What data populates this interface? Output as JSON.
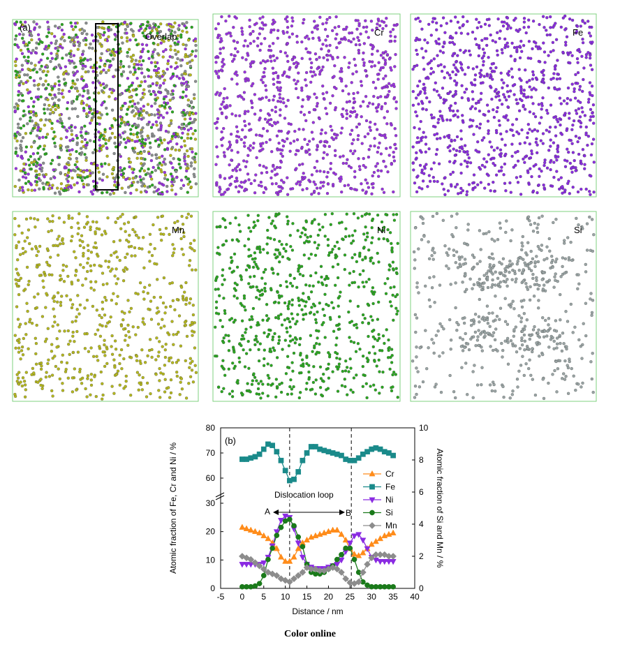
{
  "caption": "Color online",
  "panels": [
    {
      "label": "(a)",
      "element": "Overlap",
      "color": "#9a33e0"
    },
    {
      "label": "",
      "element": "Cr",
      "color": "#9a33e0"
    },
    {
      "label": "",
      "element": "Fe",
      "color": "#8a2be2"
    },
    {
      "label": "",
      "element": "Mn",
      "color": "#b5b81e"
    },
    {
      "label": "",
      "element": "Ni",
      "color": "#2aa820"
    },
    {
      "label": "",
      "element": "Si",
      "color": "#9aa5a5"
    }
  ],
  "overlap_colors": [
    "#9a33e0",
    "#2aa820",
    "#b5b81e",
    "#8a8f8f"
  ],
  "chart_data": {
    "type": "line",
    "panel_label": "(b)",
    "xlabel": "Distance / nm",
    "ylabel_left": "Atomic fraction of Fe, Cr and Ni / %",
    "ylabel_right": "Atomic fraction of Si and Mn / %",
    "xlim": [
      -5,
      40
    ],
    "xticks": [
      -5,
      0,
      5,
      10,
      15,
      20,
      25,
      30,
      35,
      40
    ],
    "ylim_left_lower": [
      0,
      30
    ],
    "ylim_left_upper": [
      55,
      80
    ],
    "yticks_left": [
      0,
      10,
      20,
      30,
      60,
      70,
      80
    ],
    "ylim_right": [
      0,
      10
    ],
    "yticks_right": [
      0,
      2,
      4,
      6,
      8,
      10
    ],
    "axis_break": true,
    "legend_position": "right",
    "dashed_lines_x": [
      11,
      25.3
    ],
    "annotations": {
      "loop_label": "Dislocation loop",
      "point_a": "A",
      "point_b": "B"
    },
    "series": [
      {
        "name": "Cr",
        "axis": "left",
        "color": "#ff8c1a",
        "marker": "triangle-up",
        "x": [
          0,
          1,
          2,
          3,
          4,
          5,
          6,
          7,
          8,
          9,
          10,
          11,
          12,
          13,
          14,
          15,
          16,
          17,
          18,
          19,
          20,
          21,
          22,
          23,
          24,
          25,
          26,
          27,
          28,
          29,
          30,
          31,
          32,
          33,
          34,
          35
        ],
        "y": [
          21.5,
          21,
          20.5,
          20,
          19.5,
          18.5,
          17.5,
          16,
          14,
          11,
          9.5,
          9.5,
          11,
          14,
          16,
          17,
          18,
          18.5,
          19,
          19.5,
          20,
          20.5,
          20.5,
          19,
          17,
          14,
          12,
          11.5,
          12.5,
          14,
          15.5,
          16.5,
          17.5,
          18.5,
          19,
          19.5
        ]
      },
      {
        "name": "Fe",
        "axis": "left",
        "color": "#1a8a8a",
        "marker": "square",
        "x": [
          0,
          1,
          2,
          3,
          4,
          5,
          6,
          7,
          8,
          9,
          10,
          11,
          12,
          13,
          14,
          15,
          16,
          17,
          18,
          19,
          20,
          21,
          22,
          23,
          24,
          25,
          26,
          27,
          28,
          29,
          30,
          31,
          32,
          33,
          34,
          35
        ],
        "y": [
          67.5,
          67.5,
          68,
          68.5,
          69.5,
          71.5,
          73.5,
          73,
          70.5,
          67,
          63,
          59,
          59.5,
          62.5,
          67,
          70,
          72.5,
          72.5,
          71.5,
          71,
          70.5,
          70,
          69.5,
          69,
          67.5,
          67,
          67,
          68,
          69.5,
          70.5,
          71.5,
          72,
          71.5,
          70.5,
          70,
          69
        ]
      },
      {
        "name": "Ni",
        "axis": "left",
        "color": "#8a2be2",
        "marker": "triangle-down",
        "x": [
          0,
          1,
          2,
          3,
          4,
          5,
          6,
          7,
          8,
          9,
          10,
          11,
          12,
          13,
          14,
          15,
          16,
          17,
          18,
          19,
          20,
          21,
          22,
          23,
          24,
          25,
          26,
          27,
          28,
          29,
          30,
          31,
          32,
          33,
          34,
          35
        ],
        "y": [
          8.5,
          8.5,
          8.5,
          8.5,
          8.5,
          9,
          11,
          15,
          20,
          24,
          25.5,
          25,
          21,
          16,
          11,
          8.5,
          7.5,
          7,
          7,
          7,
          7.5,
          8,
          8.5,
          10,
          13,
          16,
          18.5,
          19,
          17,
          14,
          11,
          10,
          9.5,
          9.5,
          9.5,
          9.5
        ]
      },
      {
        "name": "Si",
        "axis": "right",
        "color": "#1a7a1a",
        "marker": "circle",
        "x": [
          0,
          1,
          2,
          3,
          4,
          5,
          6,
          7,
          8,
          9,
          10,
          11,
          12,
          13,
          14,
          15,
          16,
          17,
          18,
          19,
          20,
          21,
          22,
          23,
          24,
          25,
          26,
          27,
          28,
          29,
          30,
          31,
          32,
          33,
          34,
          35
        ],
        "y": [
          0.1,
          0.1,
          0.1,
          0.15,
          0.3,
          0.8,
          1.8,
          2.5,
          3.3,
          3.8,
          4.2,
          4.3,
          3.9,
          3.2,
          2.6,
          1.5,
          1.0,
          0.9,
          0.9,
          1.0,
          1.2,
          1.4,
          1.8,
          2.1,
          2.5,
          2.5,
          1.8,
          1.0,
          0.4,
          0.2,
          0.1,
          0.1,
          0.1,
          0.1,
          0.1,
          0.1
        ]
      },
      {
        "name": "Mn",
        "axis": "right",
        "color": "#8c8c8c",
        "marker": "diamond",
        "x": [
          0,
          1,
          2,
          3,
          4,
          5,
          6,
          7,
          8,
          9,
          10,
          11,
          12,
          13,
          14,
          15,
          16,
          17,
          18,
          19,
          20,
          21,
          22,
          23,
          24,
          25,
          26,
          27,
          28,
          29,
          30,
          31,
          32,
          33,
          34,
          35
        ],
        "y": [
          2.0,
          1.9,
          1.8,
          1.6,
          1.4,
          1.2,
          1.0,
          0.9,
          0.8,
          0.6,
          0.5,
          0.4,
          0.6,
          0.8,
          1.0,
          1.3,
          1.2,
          1.2,
          1.1,
          1.1,
          1.2,
          1.3,
          1.2,
          1.0,
          0.6,
          0.35,
          0.3,
          0.4,
          1.0,
          1.5,
          1.9,
          2.1,
          2.1,
          2.1,
          2.0,
          2.0
        ]
      }
    ]
  }
}
